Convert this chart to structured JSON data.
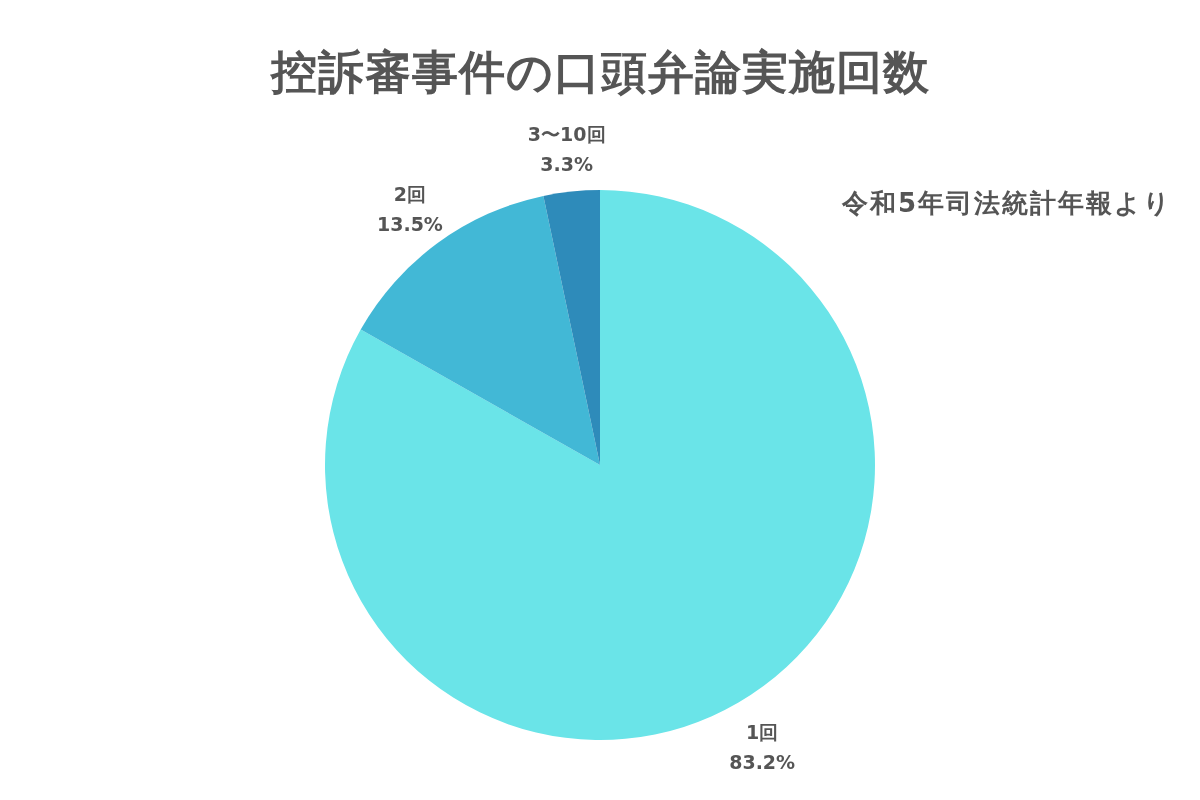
{
  "chart_data": {
    "type": "pie",
    "title": "控訴審事件の口頭弁論実施回数",
    "categories": [
      "1回",
      "2回",
      "3〜10回"
    ],
    "values": [
      83.2,
      13.5,
      3.3
    ],
    "colors": [
      "#6ae4e8",
      "#42b8d6",
      "#2e8bba"
    ],
    "value_labels": [
      "83.2%",
      "13.5%",
      "3.3%"
    ],
    "annotations": [
      "令和5年司法統計年報より"
    ]
  }
}
